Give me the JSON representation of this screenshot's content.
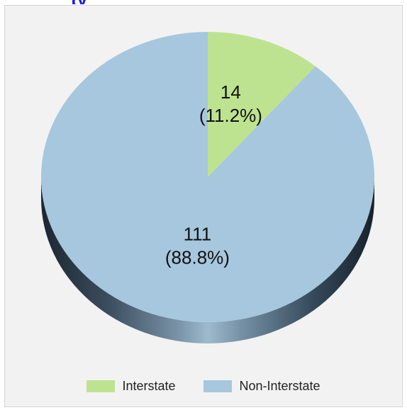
{
  "chart_data": {
    "type": "pie",
    "title": "",
    "slices": [
      {
        "label": "Interstate",
        "value": 14,
        "percent": 11.2,
        "value_label": "14",
        "percent_label": "(11.2%)",
        "color": "#bde390"
      },
      {
        "label": "Non-Interstate",
        "value": 111,
        "percent": 88.8,
        "value_label": "111",
        "percent_label": "(88.8%)",
        "color": "#a6c7de"
      }
    ],
    "legend_position": "bottom",
    "style": "3d-pie"
  },
  "colors": {
    "panel_background": "#f2f2f2",
    "title_text": "#1a1adf"
  }
}
